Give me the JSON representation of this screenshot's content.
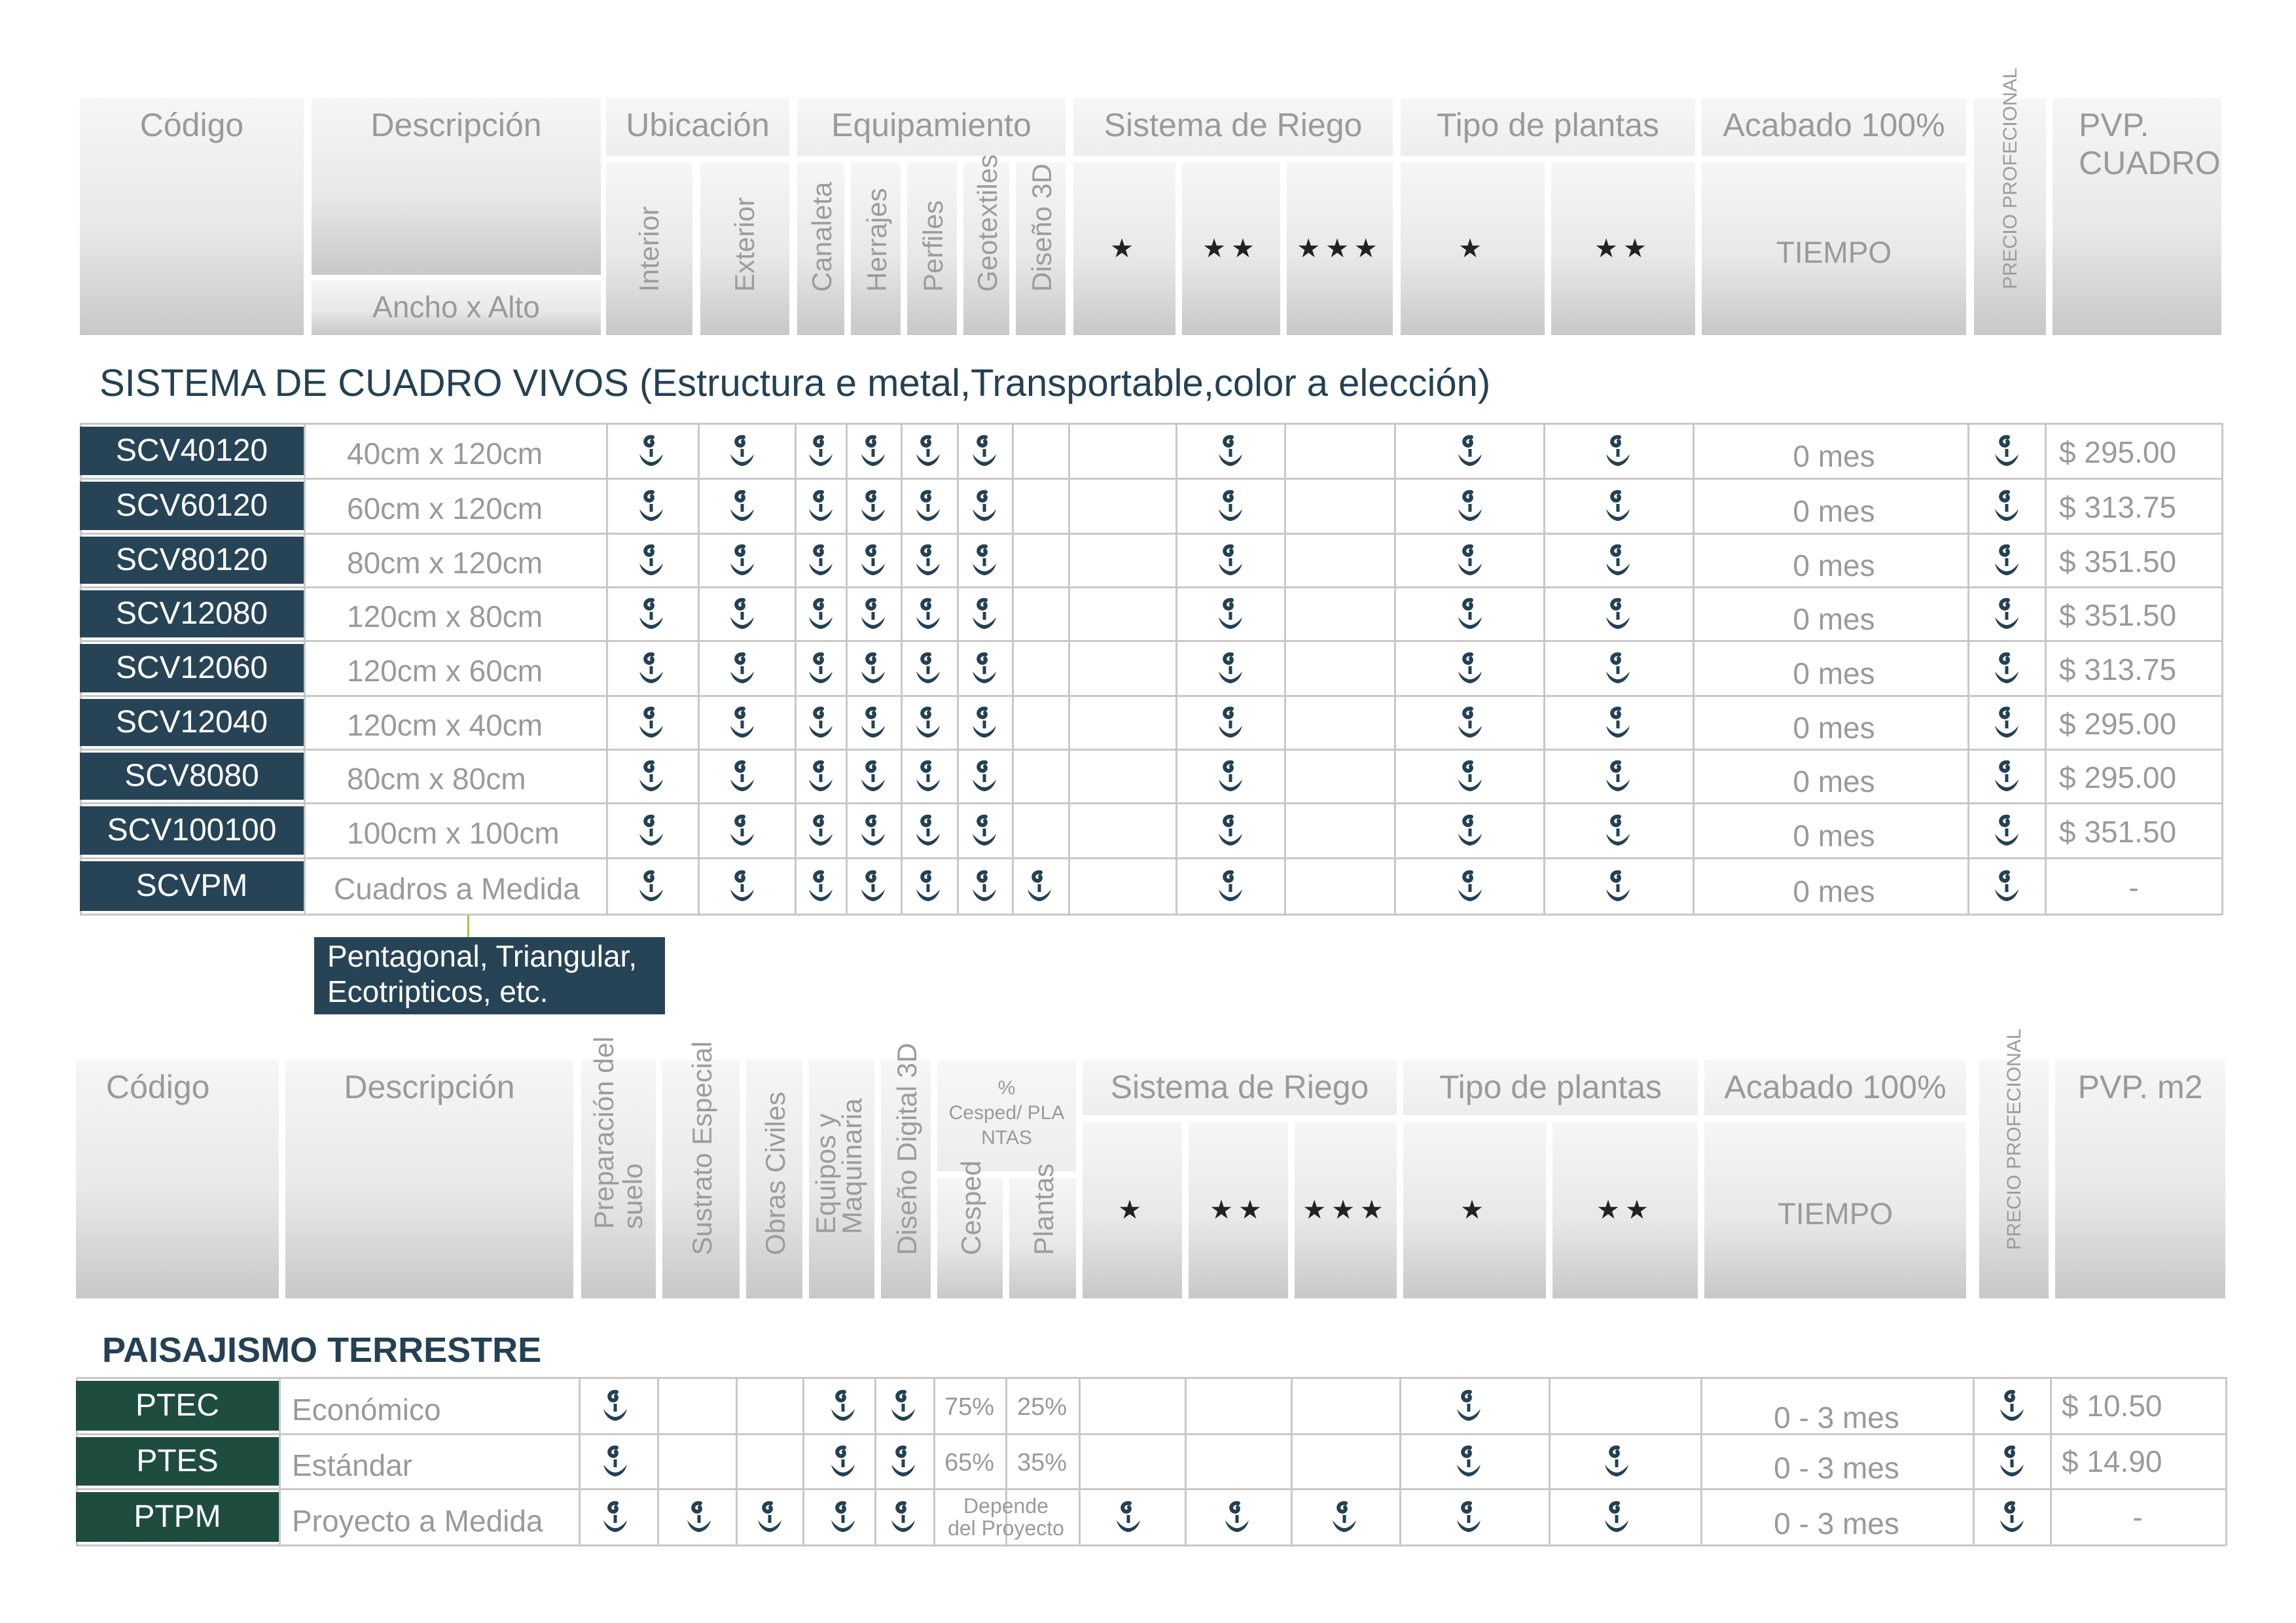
{
  "table1": {
    "headers": {
      "codigo": "Código",
      "descripcion": "Descripción",
      "ancho_alto": "Ancho x Alto",
      "ubicacion": "Ubicación",
      "interior": "Interior",
      "exterior": "Exterior",
      "equipamiento": "Equipamiento",
      "canaleta": "Canaleta",
      "herrajes": "Herrajes",
      "perfiles": "Perfiles",
      "geotextiles": "Geotextiles",
      "diseno3d": "Diseño 3D",
      "sistema_riego": "Sistema de Riego",
      "tipo_plantas": "Tipo de plantas",
      "acabado": "Acabado 100%",
      "tiempo": "TIEMPO",
      "precio_prof": "PRECIO PROFECIONAL",
      "pvp": "PVP. CUADRO",
      "star1": "★",
      "star2": "★★",
      "star3": "★★★"
    },
    "section_title": "SISTEMA DE CUADRO VIVOS (Estructura e metal,Transportable,color a elección)",
    "rows": [
      {
        "code": "SCV40120",
        "desc": "40cm x 120cm",
        "tiempo": "0 mes",
        "price": "$ 295.00"
      },
      {
        "code": "SCV60120",
        "desc": "60cm x 120cm",
        "tiempo": "0 mes",
        "price": "$ 313.75"
      },
      {
        "code": "SCV80120",
        "desc": "80cm x 120cm",
        "tiempo": "0 mes",
        "price": "$ 351.50"
      },
      {
        "code": "SCV12080",
        "desc": "120cm x 80cm",
        "tiempo": "0 mes",
        "price": "$ 351.50"
      },
      {
        "code": "SCV12060",
        "desc": "120cm x 60cm",
        "tiempo": "0 mes",
        "price": "$ 313.75"
      },
      {
        "code": "SCV12040",
        "desc": "120cm x 40cm",
        "tiempo": "0 mes",
        "price": "$ 295.00"
      },
      {
        "code": "SCV8080",
        "desc": "80cm x 80cm",
        "tiempo": "0 mes",
        "price": "$ 295.00"
      },
      {
        "code": "SCV100100",
        "desc": "100cm x 100cm",
        "tiempo": "0 mes",
        "price": "$ 351.50"
      },
      {
        "code": "SCVPM",
        "desc": "Cuadros a Medida",
        "tiempo": "0 mes",
        "price": "-"
      }
    ],
    "tooltip": [
      "Pentagonal, Triangular,",
      "Ecotripticos, etc."
    ]
  },
  "table2": {
    "headers": {
      "codigo": "Código",
      "descripcion": "Descripción",
      "preparacion": [
        "Preparación del",
        "suelo"
      ],
      "sustrato": "Sustrato Especial",
      "obras": "Obras Civiles",
      "equipos": [
        "Equipos y",
        "Maquinaria"
      ],
      "diseno": "Diseño Digital 3D",
      "cesped_plantas": [
        "%",
        "Cesped/ PLA",
        "NTAS"
      ],
      "cesped": "Cesped",
      "plantas": "Plantas",
      "sistema_riego": "Sistema de Riego",
      "tipo_plantas": "Tipo de plantas",
      "acabado": "Acabado 100%",
      "tiempo": "TIEMPO",
      "precio_prof": "PRECIO PROFECIONAL",
      "pvp": "PVP. m2",
      "star1": "★",
      "star2": "★★",
      "star3": "★★★"
    },
    "section_title": "PAISAJISMO TERRESTRE",
    "rows": [
      {
        "code": "PTEC",
        "desc": "Económico",
        "cesped": "75%",
        "plantas": "25%",
        "tiempo": "0 - 3 mes",
        "price": "$ 10.50"
      },
      {
        "code": "PTES",
        "desc": "Estándar",
        "cesped": "65%",
        "plantas": "35%",
        "tiempo": "0 - 3 mes",
        "price": "$ 14.90"
      },
      {
        "code": "PTPM",
        "desc": "Proyecto a Medida",
        "depende": [
          "Depende",
          "del Proyecto"
        ],
        "tiempo": "0 - 3 mes",
        "price": "-"
      }
    ]
  },
  "colors": {
    "dark_blue": "#274457",
    "dark_green": "#1e4c3f",
    "icon": "#244154"
  },
  "icon_name": "plant-sprout-icon"
}
